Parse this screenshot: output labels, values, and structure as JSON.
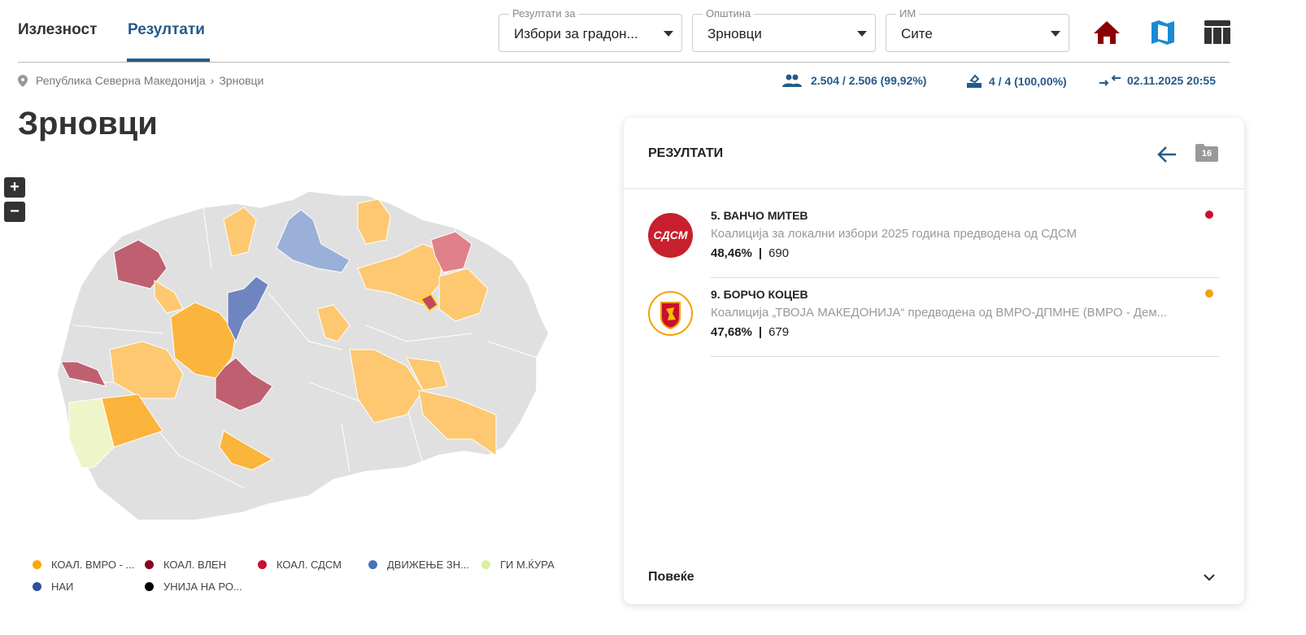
{
  "tabs": [
    {
      "label": "Излезност",
      "active": false
    },
    {
      "label": "Резултати",
      "active": true
    }
  ],
  "filters": [
    {
      "label": "Резултати за",
      "value": "Избори за градон..."
    },
    {
      "label": "Општина",
      "value": "Зрновци"
    },
    {
      "label": "ИМ",
      "value": "Сите"
    }
  ],
  "toolbar_icons": [
    "home-icon",
    "map-icon",
    "table-icon"
  ],
  "colors": {
    "accent": "#255a8a",
    "home": "#8b0000",
    "map": "#1a8ad4"
  },
  "breadcrumb": [
    "Република Северна Македонија",
    "Зрновци"
  ],
  "stats": {
    "voters": "2.504 / 2.506 (99,92%)",
    "stations": "4 / 4 (100,00%)",
    "updated": "02.11.2025 20:55"
  },
  "title": "Зрновци",
  "zoom": {
    "in": "+",
    "out": "−"
  },
  "panel": {
    "title": "РЕЗУЛТАТИ",
    "folder_badge": "16",
    "candidates": [
      {
        "name": "5. ВАНЧО МИТЕВ",
        "party": "Коалиција за локални избори 2025 година предводена од СДСМ",
        "percent": "48,46%",
        "votes": "690",
        "color": "#c8102e",
        "logo_text": "СДСМ"
      },
      {
        "name": "9. БОРЧО КОЦЕВ",
        "party": "Коалиција „ТВОЈА МАКЕДОНИЈА“ предводена од ВМРО-ДПМНЕ (ВМРО - Дем...",
        "percent": "47,68%",
        "votes": "679",
        "color": "#f5a000"
      }
    ],
    "more": "Повеќе"
  },
  "legend": [
    {
      "label": "КОАЛ. ВМРО - ...",
      "color": "#ffa500"
    },
    {
      "label": "КОАЛ. ВЛЕН",
      "color": "#8b0020"
    },
    {
      "label": "КОАЛ. СДСМ",
      "color": "#c8102e"
    },
    {
      "label": "ДВИЖЕЊЕ ЗН...",
      "color": "#4a72b8"
    },
    {
      "label": "ГИ М.ЌУРА",
      "color": "#d9f0a0"
    },
    {
      "label": "НАИ",
      "color": "#2f4f9f"
    },
    {
      "label": "УНИЈА НА РО...",
      "color": "#000000"
    }
  ]
}
